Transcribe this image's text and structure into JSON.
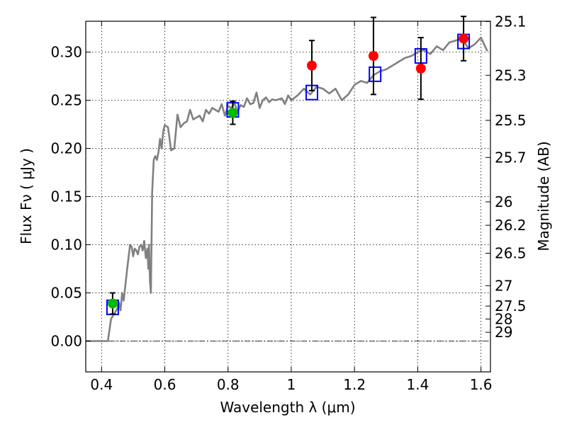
{
  "chart_data": {
    "type": "scatter",
    "xlabel": "Wavelength  λ (μm)",
    "ylabel": "Flux  Fν  ( μJy )",
    "y2label": "Magnitude (AB)",
    "xlim": [
      0.35,
      1.63
    ],
    "ylim": [
      -0.032,
      0.332
    ],
    "grid": true,
    "x_ticks": [
      0.4,
      0.6,
      0.8,
      1.0,
      1.2,
      1.4,
      1.6
    ],
    "x_tick_labels": [
      "0.4",
      "0.6",
      "0.8",
      "1",
      "1.2",
      "1.4",
      "1.6"
    ],
    "y_ticks": [
      0.0,
      0.05,
      0.1,
      0.15,
      0.2,
      0.25,
      0.3
    ],
    "y_tick_labels": [
      "0.00",
      "0.05",
      "0.10",
      "0.15",
      "0.20",
      "0.25",
      "0.30"
    ],
    "y2_ticks": [
      {
        "label": "25.1",
        "flux": 0.3317
      },
      {
        "label": "25.3",
        "flux": 0.2759
      },
      {
        "label": "25.5",
        "flux": 0.2291
      },
      {
        "label": "25.7",
        "flux": 0.1906
      },
      {
        "label": "26",
        "flux": 0.1445
      },
      {
        "label": "26.2",
        "flux": 0.1202
      },
      {
        "label": "26.5",
        "flux": 0.0912
      },
      {
        "label": "27",
        "flux": 0.0575
      },
      {
        "label": "27.5",
        "flux": 0.0363
      },
      {
        "label": "28",
        "flux": 0.0229
      },
      {
        "label": "29",
        "flux": 0.0091
      }
    ],
    "zero_line_y": 0.0,
    "series": [
      {
        "style": "line",
        "color": "#808080",
        "x": [
          0.35,
          0.38,
          0.405,
          0.42,
          0.43,
          0.44,
          0.45,
          0.455,
          0.46,
          0.465,
          0.47,
          0.48,
          0.49,
          0.495,
          0.5,
          0.505,
          0.51,
          0.515,
          0.52,
          0.525,
          0.53,
          0.535,
          0.54,
          0.545,
          0.548,
          0.55,
          0.553,
          0.556,
          0.56,
          0.565,
          0.57,
          0.575,
          0.58,
          0.585,
          0.59,
          0.595,
          0.6,
          0.61,
          0.62,
          0.63,
          0.64,
          0.65,
          0.66,
          0.67,
          0.68,
          0.69,
          0.7,
          0.71,
          0.72,
          0.73,
          0.74,
          0.75,
          0.76,
          0.77,
          0.78,
          0.79,
          0.8,
          0.81,
          0.82,
          0.83,
          0.84,
          0.85,
          0.86,
          0.87,
          0.88,
          0.89,
          0.9,
          0.91,
          0.92,
          0.93,
          0.94,
          0.95,
          0.96,
          0.97,
          0.98,
          0.99,
          1.0,
          1.02,
          1.04,
          1.06,
          1.08,
          1.1,
          1.12,
          1.14,
          1.16,
          1.18,
          1.2,
          1.22,
          1.24,
          1.26,
          1.28,
          1.3,
          1.32,
          1.34,
          1.36,
          1.38,
          1.4,
          1.42,
          1.44,
          1.46,
          1.48,
          1.5,
          1.52,
          1.54,
          1.56,
          1.58,
          1.6,
          1.62
        ],
        "y": [
          0.0,
          0.0,
          0.0,
          0.0,
          0.023,
          0.028,
          0.034,
          0.04,
          0.032,
          0.05,
          0.042,
          0.072,
          0.1,
          0.098,
          0.088,
          0.096,
          0.094,
          0.09,
          0.098,
          0.1,
          0.094,
          0.104,
          0.086,
          0.096,
          0.075,
          0.1,
          0.062,
          0.05,
          0.155,
          0.188,
          0.192,
          0.188,
          0.196,
          0.21,
          0.2,
          0.218,
          0.224,
          0.222,
          0.198,
          0.2,
          0.235,
          0.222,
          0.226,
          0.228,
          0.24,
          0.23,
          0.232,
          0.234,
          0.228,
          0.24,
          0.236,
          0.242,
          0.24,
          0.238,
          0.246,
          0.234,
          0.244,
          0.242,
          0.247,
          0.238,
          0.245,
          0.243,
          0.252,
          0.246,
          0.247,
          0.258,
          0.242,
          0.25,
          0.253,
          0.248,
          0.251,
          0.25,
          0.251,
          0.252,
          0.246,
          0.255,
          0.25,
          0.255,
          0.262,
          0.256,
          0.264,
          0.262,
          0.257,
          0.262,
          0.25,
          0.256,
          0.266,
          0.27,
          0.268,
          0.276,
          0.28,
          0.282,
          0.286,
          0.29,
          0.294,
          0.296,
          0.3,
          0.302,
          0.298,
          0.306,
          0.302,
          0.31,
          0.312,
          0.314,
          0.304,
          0.308,
          0.315,
          0.301
        ]
      },
      {
        "style": "open-square",
        "color": "#0000ff",
        "x": [
          0.435,
          0.815,
          1.065,
          1.265,
          1.41,
          1.545
        ],
        "y": [
          0.035,
          0.24,
          0.258,
          0.277,
          0.296,
          0.311
        ]
      },
      {
        "style": "filled-circle",
        "color": "#00bb00",
        "x": [
          0.435,
          0.815
        ],
        "y": [
          0.039,
          0.237
        ],
        "yerr": [
          0.011,
          0.012
        ]
      },
      {
        "style": "filled-circle",
        "color": "#ff0000",
        "x": [
          1.065,
          1.26,
          1.41,
          1.545
        ],
        "y": [
          0.286,
          0.296,
          0.283,
          0.314
        ],
        "yerr": [
          0.026,
          0.04,
          0.032,
          0.023
        ]
      }
    ]
  }
}
